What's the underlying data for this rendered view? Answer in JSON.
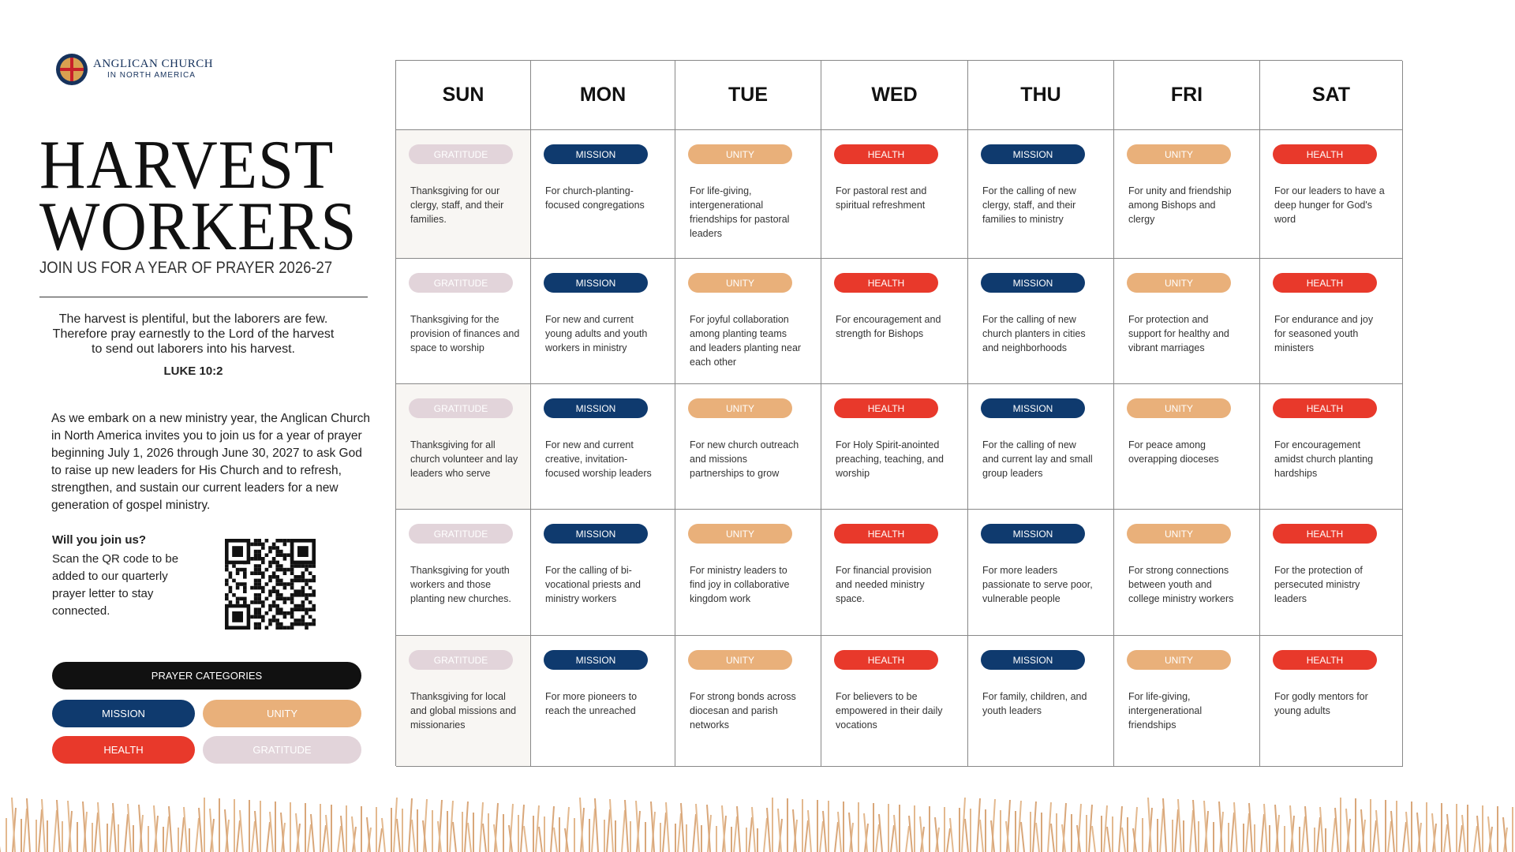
{
  "header": {
    "logo_line1": "ANGLICAN CHURCH",
    "logo_line2": "IN NORTH AMERICA",
    "title_line1": "HARVEST",
    "title_line2": "WORKERS",
    "subtitle": "JOIN US FOR A YEAR OF PRAYER 2026-27"
  },
  "sidebar": {
    "scripture": "The harvest is plentiful, but the laborers are few. Therefore pray earnestly to the Lord of the harvest to send out laborers into his harvest.",
    "reference": "LUKE 10:2",
    "intro": "As we embark on a new ministry year, the Anglican Church in North America invites you to join us for a year of prayer beginning July 1, 2026 through June 30, 2027 to ask God to raise up new leaders for His Church and to refresh, strengthen, and sustain our current leaders for a new generation of gospel ministry.",
    "join_heading": "Will you join us?",
    "join_text": "Scan the QR code to be added to our quarterly prayer letter to stay connected."
  },
  "legend": {
    "title": "PRAYER CATEGORIES",
    "items": [
      {
        "label": "MISSION",
        "color": "#0f3a6e"
      },
      {
        "label": "UNITY",
        "color": "#e9b07a"
      },
      {
        "label": "HEALTH",
        "color": "#e8392b"
      },
      {
        "label": "GRATITUDE",
        "color": "#e2d4da"
      }
    ]
  },
  "calendar": {
    "days": [
      "SUN",
      "MON",
      "TUE",
      "WED",
      "THU",
      "FRI",
      "SAT"
    ],
    "weeks": [
      [
        {
          "tag": "GRATITUDE",
          "text": "Thanksgiving for our clergy, staff, and their families."
        },
        {
          "tag": "MISSION",
          "text": "For church-planting-focused congregations"
        },
        {
          "tag": "UNITY",
          "text": "For life-giving, intergenerational friendships for pastoral leaders"
        },
        {
          "tag": "HEALTH",
          "text": "For pastoral rest and spiritual refreshment"
        },
        {
          "tag": "MISSION",
          "text": "For the calling of new clergy, staff, and their families to ministry"
        },
        {
          "tag": "UNITY",
          "text": "For unity and friendship among Bishops and clergy"
        },
        {
          "tag": "HEALTH",
          "text": "For our leaders to have a deep hunger for God's word"
        }
      ],
      [
        {
          "tag": "GRATITUDE",
          "text": "Thanksgiving for the provision of finances and space to worship"
        },
        {
          "tag": "MISSION",
          "text": "For new and current young adults and youth workers in ministry"
        },
        {
          "tag": "UNITY",
          "text": "For joyful collaboration among planting teams and leaders planting near each other"
        },
        {
          "tag": "HEALTH",
          "text": "For encouragement and strength for Bishops"
        },
        {
          "tag": "MISSION",
          "text": "For the calling of new church planters in cities and neighborhoods"
        },
        {
          "tag": "UNITY",
          "text": "For protection and support for healthy and vibrant marriages"
        },
        {
          "tag": "HEALTH",
          "text": "For endurance and joy for seasoned youth ministers"
        }
      ],
      [
        {
          "tag": "GRATITUDE",
          "text": "Thanksgiving for all church volunteer and lay leaders who serve"
        },
        {
          "tag": "MISSION",
          "text": "For new and current creative, invitation-focused worship leaders"
        },
        {
          "tag": "UNITY",
          "text": "For new church outreach and missions partnerships to grow"
        },
        {
          "tag": "HEALTH",
          "text": "For Holy Spirit-anointed preaching, teaching, and worship"
        },
        {
          "tag": "MISSION",
          "text": "For the calling of new and current lay and small group leaders"
        },
        {
          "tag": "UNITY",
          "text": "For peace among overapping dioceses"
        },
        {
          "tag": "HEALTH",
          "text": "For encouragement amidst church planting hardships"
        }
      ],
      [
        {
          "tag": "GRATITUDE",
          "text": "Thanksgiving for youth workers and those planting new churches."
        },
        {
          "tag": "MISSION",
          "text": "For the calling of bi-vocational priests and ministry workers"
        },
        {
          "tag": "UNITY",
          "text": "For ministry leaders to find joy in collaborative kingdom work"
        },
        {
          "tag": "HEALTH",
          "text": "For financial provision and needed ministry space."
        },
        {
          "tag": "MISSION",
          "text": "For more leaders passionate to serve poor, vulnerable people"
        },
        {
          "tag": "UNITY",
          "text": "For strong connections between youth and college ministry workers"
        },
        {
          "tag": "HEALTH",
          "text": "For the protection of persecuted ministry leaders"
        }
      ],
      [
        {
          "tag": "GRATITUDE",
          "text": "Thanksgiving for local and global missions and missionaries"
        },
        {
          "tag": "MISSION",
          "text": "For more pioneers to reach the unreached"
        },
        {
          "tag": "UNITY",
          "text": "For strong bonds across diocesan and parish networks"
        },
        {
          "tag": "HEALTH",
          "text": "For believers to be empowered in their daily vocations"
        },
        {
          "tag": "MISSION",
          "text": "For family, children, and youth leaders"
        },
        {
          "tag": "UNITY",
          "text": "For life-giving, intergenerational friendships"
        },
        {
          "tag": "HEALTH",
          "text": "For godly mentors for young adults"
        }
      ]
    ]
  }
}
